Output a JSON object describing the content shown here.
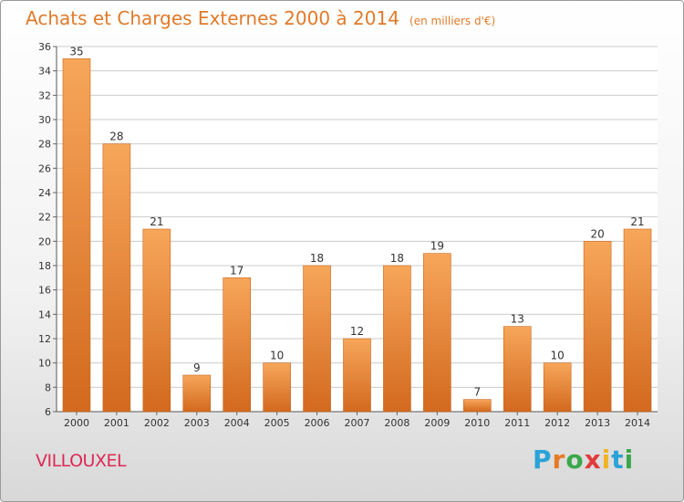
{
  "header": {
    "title": "Achats et Charges Externes 2000 à 2014",
    "unit": "(en milliers d'€)"
  },
  "footer": {
    "city": "VILLOUXEL",
    "logo": "Proxiti",
    "logo_colors": [
      "#2aa3d8",
      "#e67a26",
      "#3aa84a",
      "#e23b3b",
      "#f0b323",
      "#2aa3d8",
      "#3aa84a"
    ]
  },
  "colors": {
    "accent": "#e07a2a",
    "city": "#dd2a55",
    "bar_top": "#f7a65a",
    "bar_bottom": "#d2691e",
    "grid": "#cccccc"
  },
  "chart_data": {
    "type": "bar",
    "title": "Achats et Charges Externes 2000 à 2014",
    "subtitle": "(en milliers d'€)",
    "categories": [
      "2000",
      "2001",
      "2002",
      "2003",
      "2004",
      "2005",
      "2006",
      "2007",
      "2008",
      "2009",
      "2010",
      "2011",
      "2012",
      "2013",
      "2014"
    ],
    "values": [
      35,
      28,
      21,
      9,
      17,
      10,
      18,
      12,
      18,
      19,
      7,
      13,
      10,
      20,
      21
    ],
    "ylim": [
      6,
      36
    ],
    "yticks": [
      6,
      8,
      10,
      12,
      14,
      16,
      18,
      20,
      22,
      24,
      26,
      28,
      30,
      32,
      34,
      36
    ],
    "grid": true,
    "data_labels": true
  }
}
